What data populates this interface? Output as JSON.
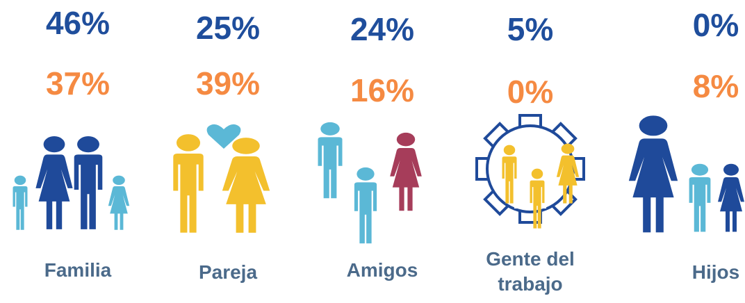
{
  "items": [
    {
      "top": "46%",
      "bottom": "37%",
      "label": [
        "Familia"
      ]
    },
    {
      "top": "25%",
      "bottom": "39%",
      "label": [
        "Pareja"
      ]
    },
    {
      "top": "24%",
      "bottom": "16%",
      "label": [
        "Amigos"
      ]
    },
    {
      "top": "5%",
      "bottom": "0%",
      "label": [
        "Gente del",
        "trabajo"
      ]
    },
    {
      "top": "0%",
      "bottom": "8%",
      "label": [
        "Hijos"
      ]
    }
  ]
}
